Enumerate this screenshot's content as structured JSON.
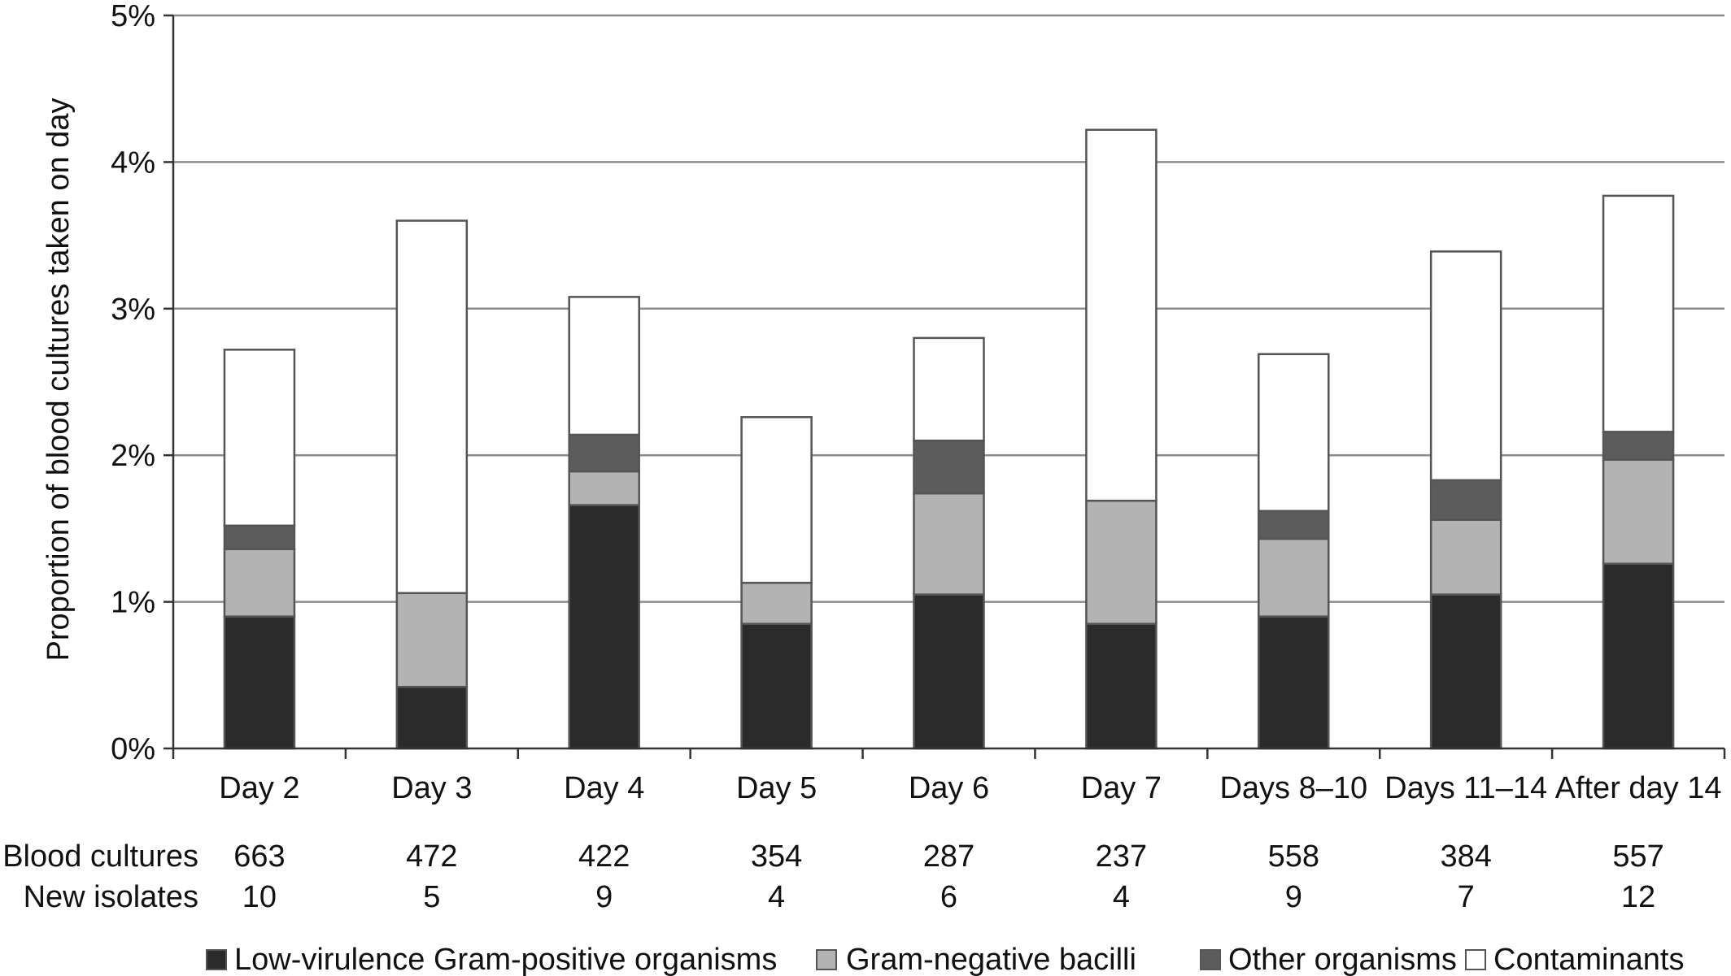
{
  "chart_data": {
    "type": "bar",
    "stacked": true,
    "categories": [
      "Day 2",
      "Day 3",
      "Day 4",
      "Day 5",
      "Day 6",
      "Day 7",
      "Days 8–10",
      "Days 11–14",
      "After day 14"
    ],
    "series": [
      {
        "name": "Low-virulence Gram-positive organisms",
        "color": "#2b2b2b",
        "values": [
          0.9,
          0.42,
          1.66,
          0.85,
          1.05,
          0.85,
          0.9,
          1.05,
          1.26
        ]
      },
      {
        "name": "Gram-negative bacilli",
        "color": "#b3b3b3",
        "values": [
          0.46,
          0.64,
          0.23,
          0.28,
          0.69,
          0.84,
          0.53,
          0.51,
          0.71
        ]
      },
      {
        "name": "Other organisms",
        "color": "#5c5c5c",
        "values": [
          0.16,
          0.0,
          0.25,
          0.0,
          0.36,
          0.0,
          0.19,
          0.27,
          0.19
        ]
      },
      {
        "name": "Contaminants",
        "color": "#ffffff",
        "values": [
          1.2,
          2.54,
          0.94,
          1.13,
          0.7,
          2.53,
          1.07,
          1.56,
          1.61
        ]
      }
    ],
    "ylabel": "Proportion of blood cultures taken on day",
    "ylim": [
      0,
      5
    ],
    "yticks": [
      0,
      1,
      2,
      3,
      4,
      5
    ],
    "ytick_labels": [
      "0%",
      "1%",
      "2%",
      "3%",
      "4%",
      "5%"
    ],
    "grid": true,
    "legend_position": "bottom",
    "table_rows": [
      {
        "label": "Blood cultures",
        "values": [
          "663",
          "472",
          "422",
          "354",
          "287",
          "237",
          "558",
          "384",
          "557"
        ]
      },
      {
        "label": "New isolates",
        "values": [
          "10",
          "5",
          "9",
          "4",
          "6",
          "4",
          "9",
          "7",
          "12"
        ]
      }
    ]
  }
}
